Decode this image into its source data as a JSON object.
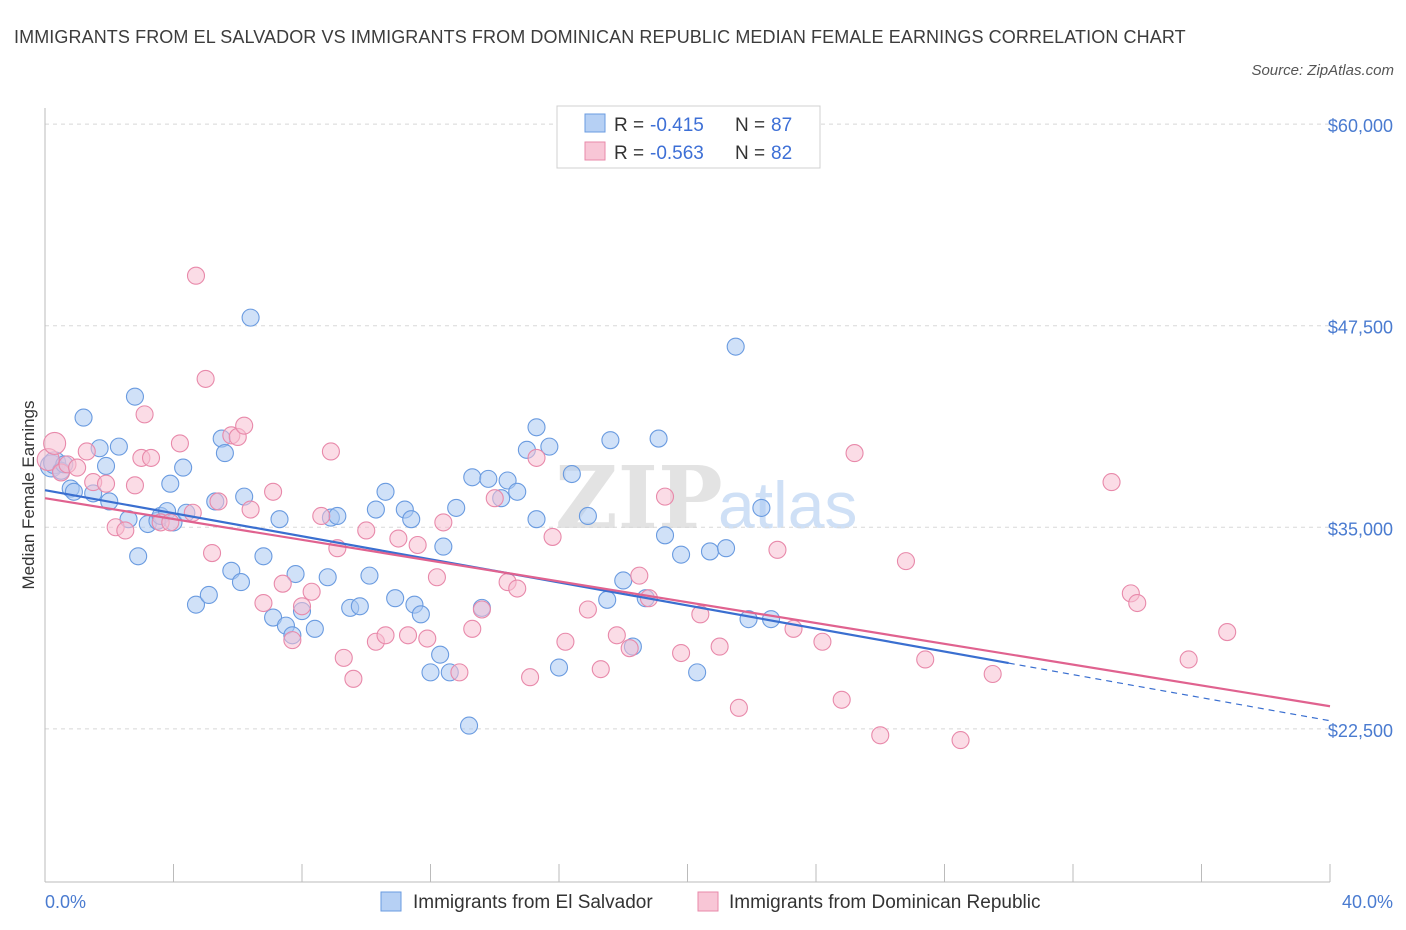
{
  "title": "IMMIGRANTS FROM EL SALVADOR VS IMMIGRANTS FROM DOMINICAN REPUBLIC MEDIAN FEMALE EARNINGS CORRELATION CHART",
  "source": "Source: ZipAtlas.com",
  "watermark": {
    "zip": "ZIP",
    "atlas": "atlas"
  },
  "colors": {
    "blue_fill": "#a9c8f2",
    "blue_stroke": "#6a9be0",
    "blue_line": "#3a6fd0",
    "pink_fill": "#f7bfd2",
    "pink_stroke": "#e889aa",
    "pink_line": "#e0628f",
    "tick_text": "#4a7bd0",
    "grid": "#d8d8d8"
  },
  "legend": {
    "r_label": "R =",
    "n_label": "N =",
    "rows": [
      {
        "series": "blue",
        "r": "-0.415",
        "n": "87"
      },
      {
        "series": "pink",
        "r": "-0.563",
        "n": "82"
      }
    ]
  },
  "chart_data": {
    "type": "scatter",
    "title": "IMMIGRANTS FROM EL SALVADOR VS IMMIGRANTS FROM DOMINICAN REPUBLIC MEDIAN FEMALE EARNINGS CORRELATION CHART",
    "xlabel": "",
    "ylabel": "Median Female Earnings",
    "xlim": [
      0,
      40
    ],
    "ylim": [
      13000,
      61000
    ],
    "x_tick_labels": {
      "left": "0.0%",
      "right": "40.0%"
    },
    "y_ticks": [
      {
        "value": 22500,
        "label": "$22,500"
      },
      {
        "value": 35000,
        "label": "$35,000"
      },
      {
        "value": 47500,
        "label": "$47,500"
      },
      {
        "value": 60000,
        "label": "$60,000"
      }
    ],
    "series": [
      {
        "name": "Immigrants from El Salvador",
        "color": "blue",
        "R": -0.415,
        "N": 87,
        "trend": {
          "x_start": 0,
          "y_start": 37300,
          "x_solid_end": 30,
          "x_end": 40,
          "y_end": 23000
        },
        "points": [
          [
            0.2,
            38800
          ],
          [
            0.3,
            39000
          ],
          [
            0.5,
            38500
          ],
          [
            0.6,
            38900
          ],
          [
            0.8,
            37400
          ],
          [
            0.9,
            37200
          ],
          [
            1.2,
            41800
          ],
          [
            1.5,
            37100
          ],
          [
            1.7,
            39900
          ],
          [
            1.9,
            38800
          ],
          [
            2.0,
            36600
          ],
          [
            2.3,
            40000
          ],
          [
            2.6,
            35500
          ],
          [
            2.8,
            43100
          ],
          [
            2.9,
            33200
          ],
          [
            3.2,
            35200
          ],
          [
            3.5,
            35400
          ],
          [
            3.6,
            35700
          ],
          [
            3.8,
            36000
          ],
          [
            3.9,
            37700
          ],
          [
            4.0,
            35300
          ],
          [
            4.3,
            38700
          ],
          [
            4.4,
            35900
          ],
          [
            4.7,
            30200
          ],
          [
            5.1,
            30800
          ],
          [
            5.3,
            36600
          ],
          [
            5.5,
            40500
          ],
          [
            5.6,
            39600
          ],
          [
            5.8,
            32300
          ],
          [
            6.1,
            31600
          ],
          [
            6.2,
            36900
          ],
          [
            6.4,
            48000
          ],
          [
            6.8,
            33200
          ],
          [
            7.1,
            29400
          ],
          [
            7.3,
            35500
          ],
          [
            7.5,
            28900
          ],
          [
            7.7,
            28300
          ],
          [
            7.8,
            32100
          ],
          [
            8.0,
            29800
          ],
          [
            8.4,
            28700
          ],
          [
            8.8,
            31900
          ],
          [
            8.9,
            35600
          ],
          [
            9.1,
            35700
          ],
          [
            9.5,
            30000
          ],
          [
            9.8,
            30100
          ],
          [
            10.1,
            32000
          ],
          [
            10.3,
            36100
          ],
          [
            10.6,
            37200
          ],
          [
            10.9,
            30600
          ],
          [
            11.2,
            36100
          ],
          [
            11.4,
            35500
          ],
          [
            11.5,
            30200
          ],
          [
            11.7,
            29600
          ],
          [
            12.0,
            26000
          ],
          [
            12.3,
            27100
          ],
          [
            12.4,
            33800
          ],
          [
            12.6,
            26000
          ],
          [
            12.8,
            36200
          ],
          [
            13.2,
            22700
          ],
          [
            13.3,
            38100
          ],
          [
            13.6,
            30000
          ],
          [
            13.8,
            38000
          ],
          [
            14.2,
            36800
          ],
          [
            14.4,
            37900
          ],
          [
            14.7,
            37200
          ],
          [
            15.0,
            39800
          ],
          [
            15.3,
            41200
          ],
          [
            15.3,
            35500
          ],
          [
            15.7,
            40000
          ],
          [
            16.0,
            26300
          ],
          [
            16.4,
            38300
          ],
          [
            16.9,
            35700
          ],
          [
            17.5,
            30500
          ],
          [
            17.6,
            40400
          ],
          [
            18.0,
            31700
          ],
          [
            18.3,
            27600
          ],
          [
            18.7,
            30600
          ],
          [
            19.1,
            40500
          ],
          [
            19.3,
            34500
          ],
          [
            19.8,
            33300
          ],
          [
            20.3,
            26000
          ],
          [
            20.7,
            33500
          ],
          [
            21.2,
            33700
          ],
          [
            21.5,
            46200
          ],
          [
            21.9,
            29300
          ],
          [
            22.3,
            36200
          ],
          [
            22.6,
            29300
          ]
        ]
      },
      {
        "name": "Immigrants from Dominican Republic",
        "color": "pink",
        "R": -0.563,
        "N": 82,
        "trend": {
          "x_start": 0,
          "y_start": 36800,
          "x_solid_end": 40,
          "x_end": 40,
          "y_end": 23900
        },
        "points": [
          [
            0.1,
            39200
          ],
          [
            0.3,
            40200
          ],
          [
            0.5,
            38400
          ],
          [
            0.7,
            38900
          ],
          [
            1.0,
            38700
          ],
          [
            1.3,
            39700
          ],
          [
            1.5,
            37800
          ],
          [
            1.9,
            37700
          ],
          [
            2.2,
            35000
          ],
          [
            2.5,
            34800
          ],
          [
            2.8,
            37600
          ],
          [
            3.0,
            39300
          ],
          [
            3.1,
            42000
          ],
          [
            3.3,
            39300
          ],
          [
            3.6,
            35300
          ],
          [
            3.9,
            35300
          ],
          [
            4.2,
            40200
          ],
          [
            4.6,
            35900
          ],
          [
            4.7,
            50600
          ],
          [
            5.0,
            44200
          ],
          [
            5.2,
            33400
          ],
          [
            5.4,
            36600
          ],
          [
            5.8,
            40700
          ],
          [
            6.0,
            40600
          ],
          [
            6.2,
            41300
          ],
          [
            6.4,
            36100
          ],
          [
            6.8,
            30300
          ],
          [
            7.1,
            37200
          ],
          [
            7.4,
            31500
          ],
          [
            7.7,
            28000
          ],
          [
            8.0,
            30100
          ],
          [
            8.3,
            31000
          ],
          [
            8.6,
            35700
          ],
          [
            8.9,
            39700
          ],
          [
            9.1,
            33700
          ],
          [
            9.3,
            26900
          ],
          [
            9.6,
            25600
          ],
          [
            10.0,
            34800
          ],
          [
            10.3,
            27900
          ],
          [
            10.6,
            28300
          ],
          [
            11.0,
            34300
          ],
          [
            11.3,
            28300
          ],
          [
            11.6,
            33900
          ],
          [
            11.9,
            28100
          ],
          [
            12.2,
            31900
          ],
          [
            12.4,
            35300
          ],
          [
            12.9,
            26000
          ],
          [
            13.3,
            28700
          ],
          [
            13.6,
            29900
          ],
          [
            14.0,
            36800
          ],
          [
            14.4,
            31600
          ],
          [
            14.7,
            31200
          ],
          [
            15.1,
            25700
          ],
          [
            15.3,
            39300
          ],
          [
            15.8,
            34400
          ],
          [
            16.2,
            27900
          ],
          [
            16.9,
            29900
          ],
          [
            17.3,
            26200
          ],
          [
            17.8,
            28300
          ],
          [
            18.2,
            27500
          ],
          [
            18.5,
            32000
          ],
          [
            18.8,
            30600
          ],
          [
            19.3,
            36900
          ],
          [
            19.8,
            27200
          ],
          [
            20.4,
            29600
          ],
          [
            21.0,
            27600
          ],
          [
            21.6,
            23800
          ],
          [
            22.8,
            33600
          ],
          [
            23.3,
            28700
          ],
          [
            24.2,
            27900
          ],
          [
            24.8,
            24300
          ],
          [
            25.2,
            39600
          ],
          [
            26.0,
            22100
          ],
          [
            26.8,
            32900
          ],
          [
            27.4,
            26800
          ],
          [
            28.5,
            21800
          ],
          [
            29.5,
            25900
          ],
          [
            33.2,
            37800
          ],
          [
            33.8,
            30900
          ],
          [
            34.0,
            30300
          ],
          [
            35.6,
            26800
          ],
          [
            36.8,
            28500
          ]
        ]
      }
    ]
  }
}
